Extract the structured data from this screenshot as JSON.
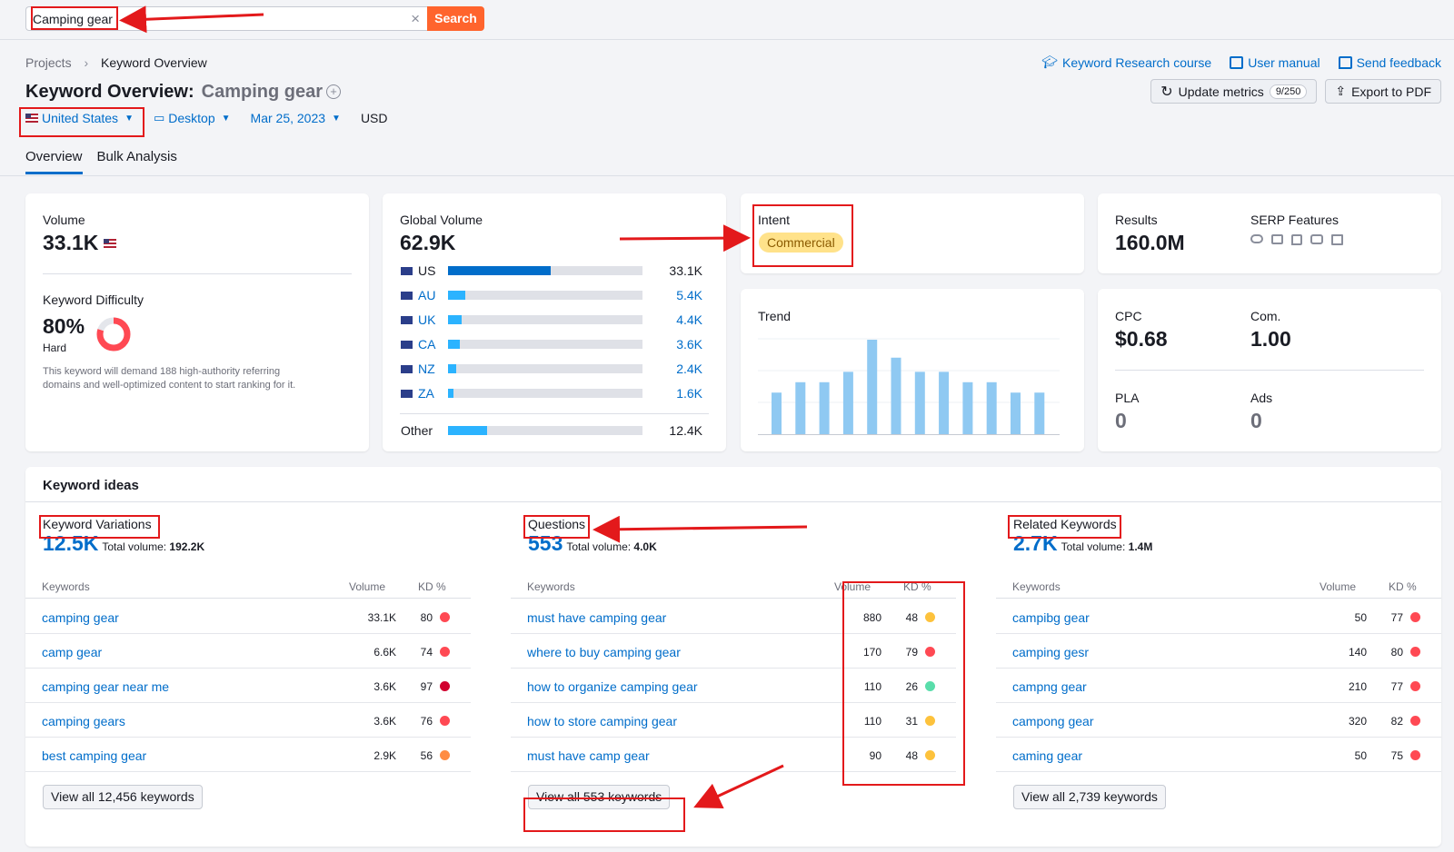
{
  "search": {
    "value": "Camping gear",
    "button": "Search"
  },
  "breadcrumb": {
    "parent": "Projects",
    "current": "Keyword Overview"
  },
  "top_links": [
    "Keyword Research course",
    "User manual",
    "Send feedback"
  ],
  "title": {
    "prefix": "Keyword Overview:",
    "keyword": "Camping gear"
  },
  "header_buttons": {
    "update": "Update metrics",
    "update_count": "9/250",
    "export": "Export to PDF"
  },
  "filters": {
    "country": "United States",
    "device": "Desktop",
    "date": "Mar 25, 2023",
    "currency": "USD"
  },
  "tabs": [
    "Overview",
    "Bulk Analysis"
  ],
  "volume": {
    "label": "Volume",
    "value": "33.1K"
  },
  "difficulty": {
    "label": "Keyword Difficulty",
    "value": "80%",
    "level": "Hard",
    "percent": 80,
    "note_line1": "This keyword will demand 188 high-authority referring",
    "note_line2": "domains and well-optimized content to start ranking for it."
  },
  "global_volume": {
    "label": "Global Volume",
    "value": "62.9K",
    "rows": [
      {
        "cc": "US",
        "val": "33.1K",
        "share": 0.53
      },
      {
        "cc": "AU",
        "val": "5.4K",
        "share": 0.09
      },
      {
        "cc": "UK",
        "val": "4.4K",
        "share": 0.07
      },
      {
        "cc": "CA",
        "val": "3.6K",
        "share": 0.06
      },
      {
        "cc": "NZ",
        "val": "2.4K",
        "share": 0.04
      },
      {
        "cc": "ZA",
        "val": "1.6K",
        "share": 0.03
      }
    ],
    "other": {
      "label": "Other",
      "val": "12.4K",
      "share": 0.2
    }
  },
  "intent": {
    "label": "Intent",
    "value": "Commercial"
  },
  "results": {
    "label": "Results",
    "value": "160.0M",
    "serp_label": "SERP Features"
  },
  "trend": {
    "label": "Trend",
    "values": [
      0.44,
      0.55,
      0.55,
      0.66,
      1.0,
      0.81,
      0.66,
      0.66,
      0.55,
      0.55,
      0.44,
      0.44
    ]
  },
  "cpc": {
    "label": "CPC",
    "value": "$0.68"
  },
  "com": {
    "label": "Com.",
    "value": "1.00"
  },
  "pla": {
    "label": "PLA",
    "value": "0"
  },
  "ads": {
    "label": "Ads",
    "value": "0"
  },
  "keyword_ideas": {
    "title": "Keyword ideas",
    "col_keywords": "Keywords",
    "col_volume": "Volume",
    "col_kd": "KD %",
    "total_label": "Total volume:",
    "variations": {
      "title": "Keyword Variations",
      "count": "12.5K",
      "total": "192.2K",
      "rows": [
        {
          "kw": "camping gear",
          "vol": "33.1K",
          "kd": "80",
          "color": "#ff4953"
        },
        {
          "kw": "camp gear",
          "vol": "6.6K",
          "kd": "74",
          "color": "#ff4953"
        },
        {
          "kw": "camping gear near me",
          "vol": "3.6K",
          "kd": "97",
          "color": "#d1002f"
        },
        {
          "kw": "camping gears",
          "vol": "3.6K",
          "kd": "76",
          "color": "#ff4953"
        },
        {
          "kw": "best camping gear",
          "vol": "2.9K",
          "kd": "56",
          "color": "#ff8c43"
        }
      ],
      "view_all": "View all 12,456 keywords"
    },
    "questions": {
      "title": "Questions",
      "count": "553",
      "total": "4.0K",
      "rows": [
        {
          "kw": "must have camping gear",
          "vol": "880",
          "kd": "48",
          "color": "#fdc23c"
        },
        {
          "kw": "where to buy camping gear",
          "vol": "170",
          "kd": "79",
          "color": "#ff4953"
        },
        {
          "kw": "how to organize camping gear",
          "vol": "110",
          "kd": "26",
          "color": "#59ddaa"
        },
        {
          "kw": "how to store camping gear",
          "vol": "110",
          "kd": "31",
          "color": "#fdc23c"
        },
        {
          "kw": "must have camp gear",
          "vol": "90",
          "kd": "48",
          "color": "#fdc23c"
        }
      ],
      "view_all": "View all 553 keywords"
    },
    "related": {
      "title": "Related Keywords",
      "count": "2.7K",
      "total": "1.4M",
      "rows": [
        {
          "kw": "campibg gear",
          "vol": "50",
          "kd": "77",
          "color": "#ff4953"
        },
        {
          "kw": "camping gesr",
          "vol": "140",
          "kd": "80",
          "color": "#ff4953"
        },
        {
          "kw": "campng gear",
          "vol": "210",
          "kd": "77",
          "color": "#ff4953"
        },
        {
          "kw": "campong gear",
          "vol": "320",
          "kd": "82",
          "color": "#ff4953"
        },
        {
          "kw": "caming gear",
          "vol": "50",
          "kd": "75",
          "color": "#ff4953"
        }
      ],
      "view_all": "View all 2,739 keywords"
    }
  }
}
